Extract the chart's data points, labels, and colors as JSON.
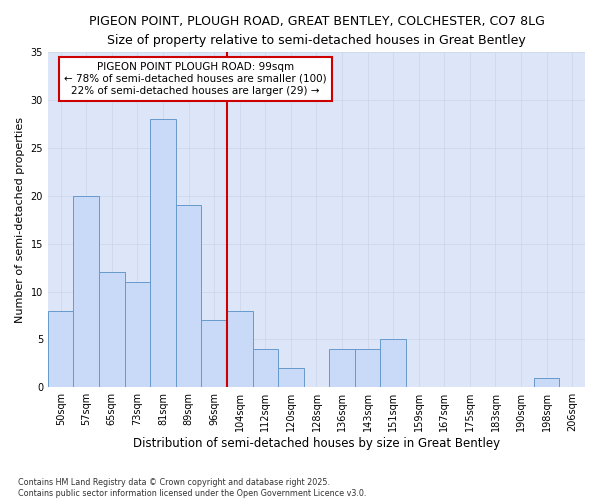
{
  "title_line1": "PIGEON POINT, PLOUGH ROAD, GREAT BENTLEY, COLCHESTER, CO7 8LG",
  "title_line2": "Size of property relative to semi-detached houses in Great Bentley",
  "xlabel": "Distribution of semi-detached houses by size in Great Bentley",
  "ylabel": "Number of semi-detached properties",
  "categories": [
    "50sqm",
    "57sqm",
    "65sqm",
    "73sqm",
    "81sqm",
    "89sqm",
    "96sqm",
    "104sqm",
    "112sqm",
    "120sqm",
    "128sqm",
    "136sqm",
    "143sqm",
    "151sqm",
    "159sqm",
    "167sqm",
    "175sqm",
    "183sqm",
    "190sqm",
    "198sqm",
    "206sqm"
  ],
  "values": [
    8,
    20,
    12,
    11,
    28,
    19,
    7,
    8,
    4,
    2,
    0,
    4,
    4,
    5,
    0,
    0,
    0,
    0,
    0,
    1,
    0
  ],
  "bar_color": "#c9daf8",
  "bar_edge_color": "#6699cc",
  "vline_x_index": 6.5,
  "vline_color": "#cc0000",
  "annotation_line1": "PIGEON POINT PLOUGH ROAD: 99sqm",
  "annotation_line2": "← 78% of semi-detached houses are smaller (100)",
  "annotation_line3": "22% of semi-detached houses are larger (29) →",
  "annotation_box_edge": "#cc0000",
  "ylim": [
    0,
    35
  ],
  "yticks": [
    0,
    5,
    10,
    15,
    20,
    25,
    30,
    35
  ],
  "grid_color": "#d0d8e8",
  "background_color": "#dce6f8",
  "footnote": "Contains HM Land Registry data © Crown copyright and database right 2025.\nContains public sector information licensed under the Open Government Licence v3.0.",
  "title_fontsize": 9,
  "subtitle_fontsize": 8.5,
  "tick_fontsize": 7,
  "ylabel_fontsize": 8,
  "xlabel_fontsize": 8.5,
  "annotation_fontsize": 7.5
}
